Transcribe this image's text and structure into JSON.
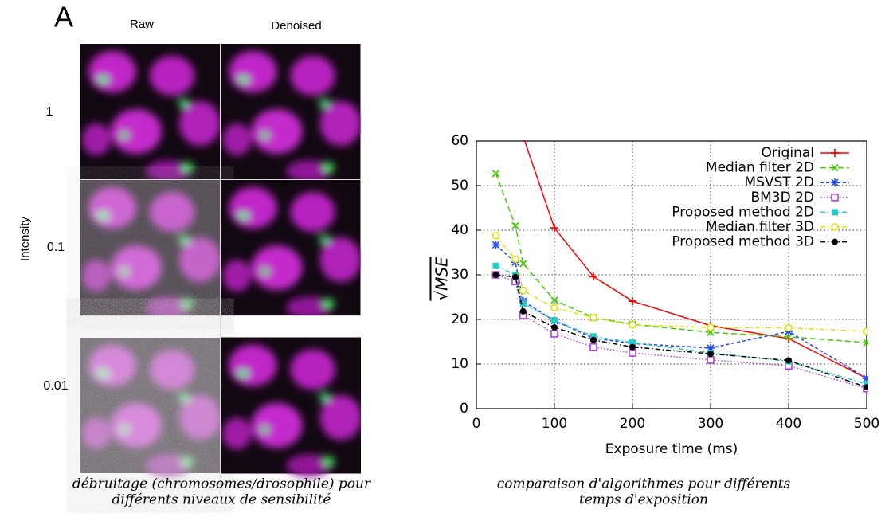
{
  "panel_a": {
    "label": "A",
    "columns": [
      "Raw",
      "Denoised"
    ],
    "row_axis_label": "Intensity",
    "rows": [
      "1",
      "0.1",
      "0.01"
    ],
    "caption": [
      "débruitage (chromosomes/drosophile) pour",
      "différents niveaux de sensibilité"
    ]
  },
  "chart_data": {
    "type": "line",
    "ylabel": "√MSE",
    "xlabel": "Exposure time (ms)",
    "x": [
      25,
      50,
      60,
      100,
      150,
      200,
      300,
      400,
      500
    ],
    "xlim": [
      0,
      500
    ],
    "xticks": [
      0,
      100,
      200,
      300,
      400,
      500
    ],
    "ylim": [
      0,
      60
    ],
    "yticks": [
      0,
      10,
      20,
      30,
      40,
      50,
      60
    ],
    "grid": true,
    "legend": "top-right",
    "series": [
      {
        "name": "Original",
        "color": "#ff0000",
        "marker": "plus",
        "dash": "solid",
        "values": [
          null,
          null,
          61,
          40.5,
          29.6,
          24.1,
          18.6,
          15.7,
          6.8
        ]
      },
      {
        "name": "Median filter 2D",
        "color": "#44cc00",
        "marker": "cross",
        "dash": "long",
        "values": [
          52.7,
          41,
          32.5,
          24.3,
          20.4,
          18.9,
          17.1,
          16.1,
          14.8
        ]
      },
      {
        "name": "MSVST 2D",
        "color": "#2244ff",
        "marker": "star",
        "dash": "short",
        "values": [
          36.7,
          32.8,
          24.1,
          19.7,
          15.8,
          14.6,
          13.6,
          17.3,
          6.8
        ]
      },
      {
        "name": "BM3D 2D",
        "color": "#b040e0",
        "marker": "square-open",
        "dash": "dot",
        "values": [
          30,
          28.5,
          20.9,
          16.8,
          13.8,
          12.5,
          10.9,
          9.6,
          4.5
        ]
      },
      {
        "name": "Proposed method 2D",
        "color": "#22ccc4",
        "marker": "square",
        "dash": "dashdot",
        "values": [
          32,
          30,
          23.5,
          19.8,
          16.2,
          14.8,
          12.5,
          10.6,
          5.5
        ]
      },
      {
        "name": "Median filter 3D",
        "color": "#e0e000",
        "marker": "circle-open",
        "dash": "dashdot",
        "values": [
          38.8,
          33.5,
          26.5,
          22.6,
          20.4,
          18.8,
          18.2,
          18.1,
          17.3
        ]
      },
      {
        "name": "Proposed method 3D",
        "color": "#000000",
        "marker": "circle",
        "dash": "dashdot",
        "values": [
          30,
          29.5,
          21.8,
          18.2,
          15.4,
          13.8,
          12.3,
          10.8,
          4.8
        ]
      }
    ],
    "caption": [
      "comparaison d'algorithmes pour différents",
      "temps d'exposition"
    ]
  }
}
